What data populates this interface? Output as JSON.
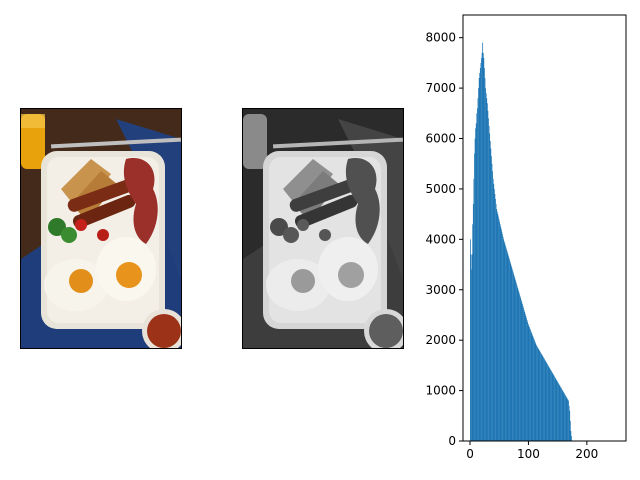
{
  "panels": {
    "color_image": {
      "name": "breakfast-photo-color"
    },
    "gray_image": {
      "name": "breakfast-photo-grayscale"
    }
  },
  "colors": {
    "bar": "#1f77b4",
    "axis": "#000000",
    "background": "#ffffff"
  },
  "chart_data": {
    "type": "bar",
    "title": "",
    "xlabel": "",
    "ylabel": "",
    "xlim": [
      -12,
      267
    ],
    "ylim": [
      0,
      8450
    ],
    "x_ticks": [
      0,
      100,
      200
    ],
    "y_ticks": [
      0,
      1000,
      2000,
      3000,
      4000,
      5000,
      6000,
      7000,
      8000
    ],
    "grid": false,
    "bin_width": 1,
    "x_start": 0,
    "values": [
      4000,
      3700,
      3400,
      3700,
      4300,
      4700,
      5200,
      5700,
      6000,
      6200,
      6300,
      6500,
      6600,
      6800,
      7000,
      7200,
      7300,
      7400,
      7500,
      7600,
      7700,
      7900,
      7700,
      7600,
      7400,
      7200,
      7000,
      6900,
      6800,
      6700,
      6550,
      6400,
      6250,
      6100,
      5950,
      5800,
      5650,
      5500,
      5350,
      5200,
      5100,
      5000,
      4900,
      4800,
      4700,
      4600,
      4550,
      4500,
      4450,
      4400,
      4350,
      4300,
      4250,
      4200,
      4150,
      4100,
      4050,
      4000,
      3960,
      3920,
      3880,
      3840,
      3800,
      3760,
      3720,
      3680,
      3640,
      3600,
      3560,
      3520,
      3480,
      3440,
      3400,
      3360,
      3320,
      3280,
      3240,
      3200,
      3160,
      3120,
      3080,
      3040,
      3000,
      2960,
      2920,
      2880,
      2840,
      2800,
      2760,
      2720,
      2680,
      2640,
      2600,
      2560,
      2520,
      2480,
      2440,
      2400,
      2360,
      2320,
      2290,
      2260,
      2230,
      2200,
      2170,
      2140,
      2110,
      2080,
      2050,
      2020,
      1990,
      1960,
      1930,
      1900,
      1880,
      1860,
      1840,
      1820,
      1800,
      1780,
      1760,
      1740,
      1720,
      1700,
      1680,
      1660,
      1640,
      1620,
      1600,
      1580,
      1560,
      1540,
      1520,
      1500,
      1480,
      1460,
      1440,
      1420,
      1400,
      1380,
      1360,
      1340,
      1320,
      1300,
      1280,
      1260,
      1240,
      1220,
      1200,
      1180,
      1160,
      1140,
      1120,
      1100,
      1080,
      1060,
      1040,
      1020,
      1000,
      980,
      960,
      940,
      920,
      900,
      880,
      860,
      840,
      820,
      800,
      700,
      600,
      400,
      200,
      100,
      0,
      0
    ]
  }
}
